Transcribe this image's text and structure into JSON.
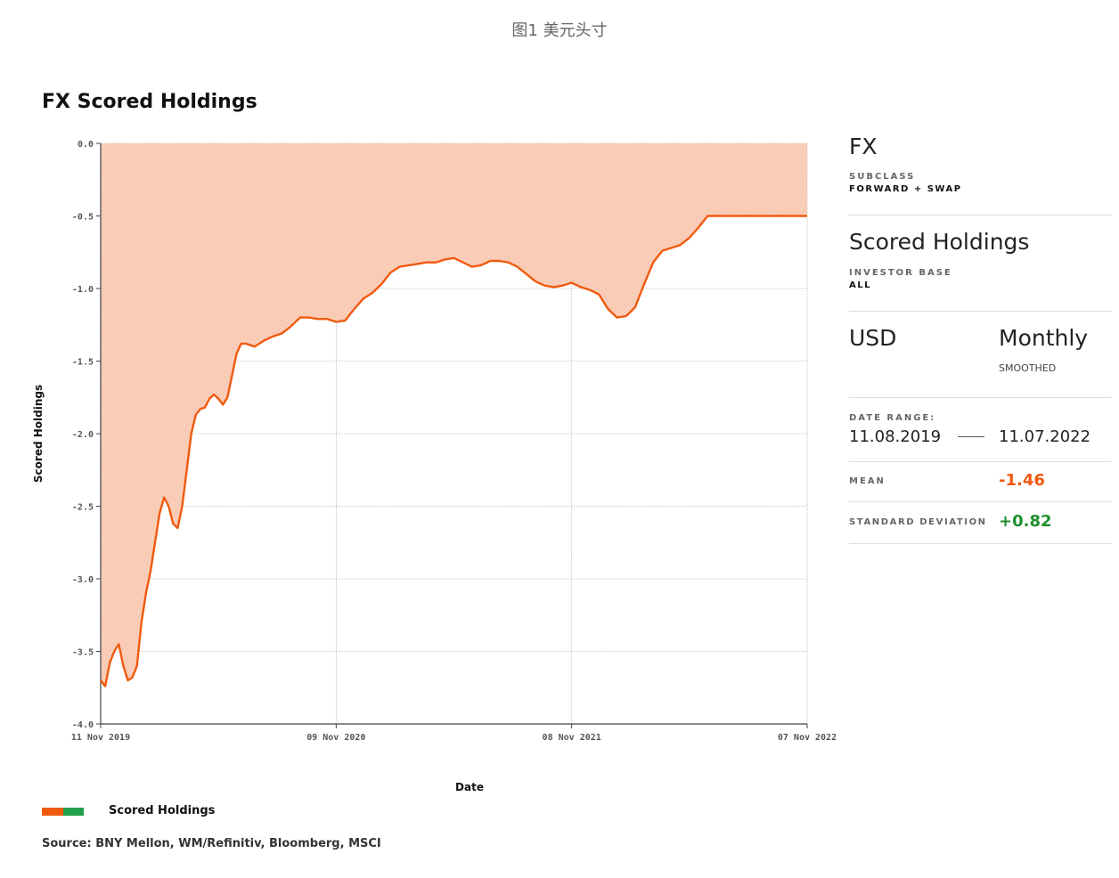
{
  "figure_caption": "图1 美元头寸",
  "panel": {
    "asset": "FX",
    "subclass_label": "SUBCLASS",
    "subclass_value": "FORWARD + SWAP",
    "metric": "Scored Holdings",
    "investor_base_label": "INVESTOR BASE",
    "investor_base_value": "ALL",
    "currency": "USD",
    "frequency": "Monthly",
    "frequency_note": "SMOOTHED",
    "date_range_label": "DATE RANGE:",
    "date_from": "11.08.2019",
    "date_to": "11.07.2022",
    "mean_label": "MEAN",
    "mean_value": "-1.46",
    "std_label": "STANDARD DEVIATION",
    "std_value": "+0.82"
  },
  "colors": {
    "line": "#f05a0f",
    "fill": "#f9c4ac",
    "mean": "#f05a0f",
    "std": "#1f8f2e",
    "legend_green": "#21a04a"
  },
  "legend_label": "Scored Holdings",
  "source": "Source: BNY Mellon, WM/Refinitiv, Bloomberg, MSCI",
  "chart_data": {
    "type": "area",
    "title": "FX Scored Holdings",
    "xlabel": "Date",
    "ylabel": "Scored Holdings",
    "ylim": [
      -4.0,
      0.0
    ],
    "yticks": [
      "0.0",
      "-0.5",
      "-1.0",
      "-1.5",
      "-2.0",
      "-2.5",
      "-3.0",
      "-3.5",
      "-4.0"
    ],
    "xticks": [
      "11 Nov 2019",
      "09 Nov 2020",
      "08 Nov 2021",
      "07 Nov 2022"
    ],
    "grid": true,
    "legend": "bottom-left",
    "fill_to": 0.0,
    "series": [
      {
        "name": "Scored Holdings",
        "x": [
          "2019-11-11",
          "2019-11-18",
          "2019-11-25",
          "2019-12-02",
          "2019-12-09",
          "2019-12-16",
          "2019-12-23",
          "2019-12-30",
          "2020-01-06",
          "2020-01-13",
          "2020-01-20",
          "2020-01-27",
          "2020-02-03",
          "2020-02-10",
          "2020-02-17",
          "2020-02-24",
          "2020-03-02",
          "2020-03-09",
          "2020-03-16",
          "2020-03-23",
          "2020-03-30",
          "2020-04-06",
          "2020-04-13",
          "2020-04-20",
          "2020-04-27",
          "2020-05-04",
          "2020-05-11",
          "2020-05-18",
          "2020-05-25",
          "2020-06-01",
          "2020-06-08",
          "2020-06-15",
          "2020-06-22",
          "2020-07-06",
          "2020-07-20",
          "2020-08-03",
          "2020-08-17",
          "2020-08-31",
          "2020-09-14",
          "2020-09-28",
          "2020-10-12",
          "2020-10-26",
          "2020-11-09",
          "2020-11-23",
          "2020-12-07",
          "2020-12-21",
          "2021-01-04",
          "2021-01-18",
          "2021-02-01",
          "2021-02-15",
          "2021-03-01",
          "2021-03-15",
          "2021-03-29",
          "2021-04-12",
          "2021-04-26",
          "2021-05-10",
          "2021-05-24",
          "2021-06-07",
          "2021-06-21",
          "2021-07-05",
          "2021-07-19",
          "2021-08-02",
          "2021-08-16",
          "2021-08-30",
          "2021-09-13",
          "2021-09-27",
          "2021-10-11",
          "2021-10-25",
          "2021-11-08",
          "2021-11-22",
          "2021-12-06",
          "2021-12-20",
          "2022-01-03",
          "2022-01-17",
          "2022-01-31",
          "2022-02-14",
          "2022-02-28",
          "2022-03-14",
          "2022-03-28",
          "2022-04-11",
          "2022-04-25",
          "2022-05-09",
          "2022-05-23",
          "2022-06-06",
          "2022-06-20",
          "2022-07-04",
          "2022-07-18",
          "2022-08-01",
          "2022-08-15",
          "2022-08-29",
          "2022-09-12",
          "2022-09-26",
          "2022-10-10",
          "2022-10-24",
          "2022-11-07"
        ],
        "y": [
          -3.7,
          -3.74,
          -3.58,
          -3.5,
          -3.45,
          -3.6,
          -3.7,
          -3.68,
          -3.6,
          -3.3,
          -3.1,
          -2.95,
          -2.75,
          -2.55,
          -2.44,
          -2.5,
          -2.62,
          -2.65,
          -2.5,
          -2.25,
          -2.0,
          -1.87,
          -1.83,
          -1.82,
          -1.76,
          -1.73,
          -1.76,
          -1.8,
          -1.75,
          -1.6,
          -1.45,
          -1.38,
          -1.38,
          -1.4,
          -1.36,
          -1.33,
          -1.31,
          -1.26,
          -1.2,
          -1.2,
          -1.21,
          -1.21,
          -1.23,
          -1.22,
          -1.14,
          -1.07,
          -1.03,
          -0.97,
          -0.89,
          -0.85,
          -0.84,
          -0.83,
          -0.82,
          -0.82,
          -0.8,
          -0.79,
          -0.82,
          -0.85,
          -0.84,
          -0.81,
          -0.81,
          -0.82,
          -0.85,
          -0.9,
          -0.95,
          -0.98,
          -0.99,
          -0.98,
          -0.96,
          -0.99,
          -1.01,
          -1.04,
          -1.14,
          -1.2,
          -1.19,
          -1.13,
          -0.97,
          -0.82,
          -0.74,
          -0.72,
          -0.7,
          -0.65,
          -0.58,
          -0.5,
          -0.5,
          -0.5,
          -0.5,
          -0.5,
          -0.5,
          -0.5,
          -0.5,
          -0.5,
          -0.5,
          -0.5,
          -0.5
        ]
      }
    ]
  }
}
